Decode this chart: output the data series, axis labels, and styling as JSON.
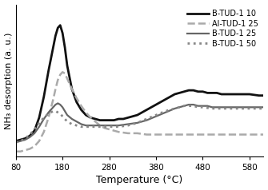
{
  "title": "",
  "xlabel": "Temperature (°C)",
  "ylabel": "NH₃ desorption (a. u.)",
  "xlim": [
    80,
    610
  ],
  "xticks": [
    80,
    180,
    280,
    380,
    480,
    580
  ],
  "xtick_labels": [
    "80",
    "180",
    "280",
    "380",
    "480",
    "580"
  ],
  "series": [
    {
      "label": "B-TUD-1 10",
      "color": "#111111",
      "linestyle": "solid",
      "linewidth": 2.0,
      "points": [
        [
          80,
          0.1
        ],
        [
          90,
          0.11
        ],
        [
          100,
          0.12
        ],
        [
          110,
          0.14
        ],
        [
          120,
          0.18
        ],
        [
          130,
          0.28
        ],
        [
          140,
          0.44
        ],
        [
          150,
          0.64
        ],
        [
          160,
          0.82
        ],
        [
          165,
          0.91
        ],
        [
          170,
          0.97
        ],
        [
          175,
          0.99
        ],
        [
          180,
          0.93
        ],
        [
          185,
          0.82
        ],
        [
          190,
          0.68
        ],
        [
          200,
          0.5
        ],
        [
          210,
          0.4
        ],
        [
          220,
          0.34
        ],
        [
          230,
          0.3
        ],
        [
          240,
          0.28
        ],
        [
          250,
          0.27
        ],
        [
          260,
          0.26
        ],
        [
          270,
          0.26
        ],
        [
          280,
          0.26
        ],
        [
          290,
          0.26
        ],
        [
          300,
          0.27
        ],
        [
          310,
          0.27
        ],
        [
          320,
          0.28
        ],
        [
          330,
          0.29
        ],
        [
          340,
          0.3
        ],
        [
          350,
          0.32
        ],
        [
          360,
          0.34
        ],
        [
          370,
          0.36
        ],
        [
          380,
          0.38
        ],
        [
          390,
          0.4
        ],
        [
          400,
          0.42
        ],
        [
          410,
          0.44
        ],
        [
          420,
          0.46
        ],
        [
          430,
          0.47
        ],
        [
          440,
          0.48
        ],
        [
          450,
          0.49
        ],
        [
          460,
          0.49
        ],
        [
          470,
          0.48
        ],
        [
          480,
          0.48
        ],
        [
          490,
          0.47
        ],
        [
          500,
          0.47
        ],
        [
          510,
          0.47
        ],
        [
          520,
          0.46
        ],
        [
          540,
          0.46
        ],
        [
          560,
          0.46
        ],
        [
          580,
          0.46
        ],
        [
          600,
          0.45
        ],
        [
          610,
          0.45
        ]
      ]
    },
    {
      "label": "Al-TUD-1 25",
      "color": "#aaaaaa",
      "linestyle": "dashed",
      "linewidth": 1.8,
      "points": [
        [
          80,
          0.02
        ],
        [
          90,
          0.02
        ],
        [
          100,
          0.03
        ],
        [
          110,
          0.04
        ],
        [
          120,
          0.06
        ],
        [
          130,
          0.1
        ],
        [
          140,
          0.17
        ],
        [
          150,
          0.28
        ],
        [
          160,
          0.42
        ],
        [
          165,
          0.5
        ],
        [
          170,
          0.57
        ],
        [
          175,
          0.61
        ],
        [
          180,
          0.63
        ],
        [
          185,
          0.62
        ],
        [
          190,
          0.58
        ],
        [
          200,
          0.5
        ],
        [
          210,
          0.43
        ],
        [
          220,
          0.37
        ],
        [
          230,
          0.32
        ],
        [
          240,
          0.28
        ],
        [
          250,
          0.25
        ],
        [
          260,
          0.22
        ],
        [
          270,
          0.2
        ],
        [
          280,
          0.19
        ],
        [
          290,
          0.18
        ],
        [
          300,
          0.17
        ],
        [
          320,
          0.16
        ],
        [
          340,
          0.16
        ],
        [
          360,
          0.15
        ],
        [
          380,
          0.15
        ],
        [
          400,
          0.15
        ],
        [
          420,
          0.15
        ],
        [
          440,
          0.15
        ],
        [
          460,
          0.15
        ],
        [
          480,
          0.15
        ],
        [
          500,
          0.15
        ],
        [
          520,
          0.15
        ],
        [
          540,
          0.15
        ],
        [
          560,
          0.15
        ],
        [
          580,
          0.15
        ],
        [
          600,
          0.15
        ],
        [
          610,
          0.15
        ]
      ]
    },
    {
      "label": "B-TUD-1 25",
      "color": "#666666",
      "linestyle": "solid",
      "linewidth": 1.6,
      "points": [
        [
          80,
          0.09
        ],
        [
          90,
          0.1
        ],
        [
          100,
          0.11
        ],
        [
          110,
          0.13
        ],
        [
          120,
          0.16
        ],
        [
          130,
          0.21
        ],
        [
          140,
          0.27
        ],
        [
          150,
          0.32
        ],
        [
          160,
          0.36
        ],
        [
          165,
          0.38
        ],
        [
          170,
          0.39
        ],
        [
          175,
          0.38
        ],
        [
          180,
          0.36
        ],
        [
          185,
          0.33
        ],
        [
          190,
          0.3
        ],
        [
          200,
          0.27
        ],
        [
          210,
          0.25
        ],
        [
          220,
          0.23
        ],
        [
          230,
          0.22
        ],
        [
          240,
          0.22
        ],
        [
          250,
          0.22
        ],
        [
          260,
          0.22
        ],
        [
          270,
          0.22
        ],
        [
          280,
          0.22
        ],
        [
          300,
          0.22
        ],
        [
          320,
          0.23
        ],
        [
          340,
          0.24
        ],
        [
          360,
          0.26
        ],
        [
          380,
          0.29
        ],
        [
          400,
          0.32
        ],
        [
          420,
          0.35
        ],
        [
          440,
          0.37
        ],
        [
          450,
          0.38
        ],
        [
          460,
          0.38
        ],
        [
          470,
          0.37
        ],
        [
          480,
          0.37
        ],
        [
          490,
          0.37
        ],
        [
          500,
          0.36
        ],
        [
          520,
          0.36
        ],
        [
          540,
          0.36
        ],
        [
          560,
          0.36
        ],
        [
          580,
          0.36
        ],
        [
          600,
          0.36
        ],
        [
          610,
          0.36
        ]
      ]
    },
    {
      "label": "B-TUD-1 50",
      "color": "#888888",
      "linestyle": "dotted",
      "linewidth": 2.0,
      "points": [
        [
          80,
          0.09
        ],
        [
          90,
          0.1
        ],
        [
          100,
          0.12
        ],
        [
          110,
          0.15
        ],
        [
          120,
          0.19
        ],
        [
          130,
          0.24
        ],
        [
          140,
          0.28
        ],
        [
          150,
          0.31
        ],
        [
          155,
          0.32
        ],
        [
          160,
          0.33
        ],
        [
          165,
          0.33
        ],
        [
          170,
          0.32
        ],
        [
          175,
          0.31
        ],
        [
          180,
          0.29
        ],
        [
          185,
          0.27
        ],
        [
          190,
          0.25
        ],
        [
          200,
          0.23
        ],
        [
          210,
          0.22
        ],
        [
          220,
          0.21
        ],
        [
          230,
          0.21
        ],
        [
          240,
          0.21
        ],
        [
          250,
          0.21
        ],
        [
          260,
          0.21
        ],
        [
          270,
          0.21
        ],
        [
          280,
          0.21
        ],
        [
          300,
          0.21
        ],
        [
          320,
          0.22
        ],
        [
          340,
          0.24
        ],
        [
          360,
          0.27
        ],
        [
          380,
          0.3
        ],
        [
          400,
          0.33
        ],
        [
          420,
          0.35
        ],
        [
          440,
          0.37
        ],
        [
          450,
          0.37
        ],
        [
          460,
          0.37
        ],
        [
          470,
          0.36
        ],
        [
          480,
          0.36
        ],
        [
          500,
          0.35
        ],
        [
          520,
          0.35
        ],
        [
          540,
          0.35
        ],
        [
          560,
          0.35
        ],
        [
          580,
          0.35
        ],
        [
          600,
          0.35
        ],
        [
          610,
          0.35
        ]
      ]
    }
  ],
  "background_color": "#ffffff"
}
